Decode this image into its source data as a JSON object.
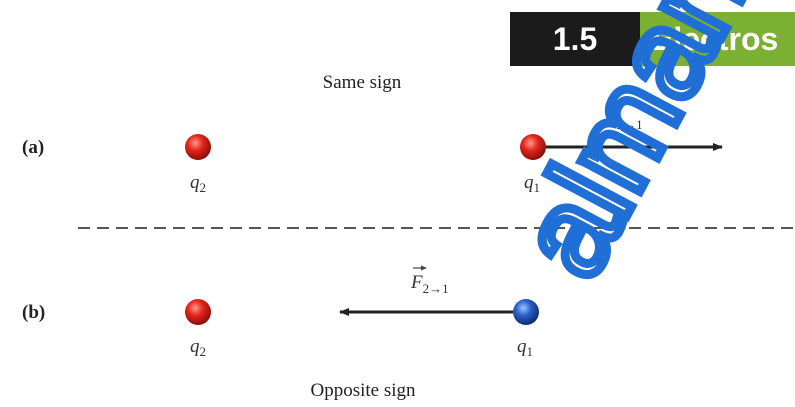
{
  "header": {
    "section": "1.5",
    "title": "Electros"
  },
  "panels": [
    {
      "tag": "(a)",
      "caption": "Same sign",
      "left_charge": {
        "symbol": "q",
        "subscript": "2"
      },
      "right_charge": {
        "symbol": "q",
        "subscript": "1"
      },
      "force": {
        "symbol": "F",
        "subscript": "2→1"
      }
    },
    {
      "tag": "(b)",
      "caption": "Opposite sign",
      "left_charge": {
        "symbol": "q",
        "subscript": "2"
      },
      "right_charge": {
        "symbol": "q",
        "subscript": "1"
      },
      "force": {
        "symbol": "F",
        "subscript": "2→1"
      }
    }
  ],
  "watermark": "alman"
}
